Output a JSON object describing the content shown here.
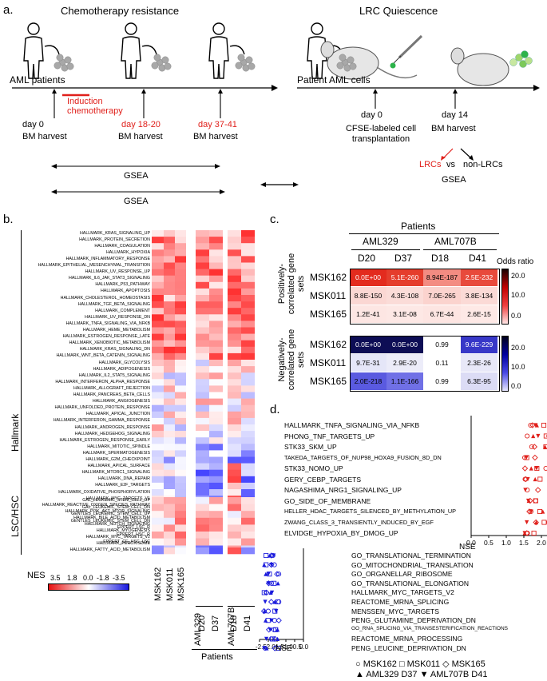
{
  "panel_a": {
    "letter": "a.",
    "chemo_title": "Chemotherapy resistance",
    "lrc_title": "LRC Quiescence",
    "aml_patients": "AML patients",
    "patient_cells": "Patient AML cells",
    "induction": "Induction chemotherapy",
    "day0": "day 0",
    "bm_harvest": "BM harvest",
    "day18": "day 18-20",
    "day37": "day 37-41",
    "lrc_day0": "day 0",
    "cfse": "CFSE-labeled cell transplantation",
    "day14": "day 14",
    "lrc_bm": "BM harvest",
    "lrcs": "LRCs",
    "vs": "vs",
    "non_lrcs": "non-LRCs",
    "gsea_right": "GSEA",
    "gsea1": "GSEA",
    "gsea2": "GSEA"
  },
  "panel_b": {
    "letter": "b.",
    "hallmark_group": "Hallmark",
    "lsc_group": "LSC/HSC",
    "nes_label": "NES",
    "nes_ticks": [
      "3.5",
      "1.8",
      "0.0",
      "-1.8",
      "-3.5"
    ],
    "columns": [
      "MSK162",
      "MSK011",
      "MSK165",
      "D20",
      "D37",
      "D18",
      "D41"
    ],
    "patient_groups": [
      "AML329",
      "AML707B"
    ],
    "patients_label": "Patients",
    "hallmark_rows": [
      "HALLMARK_KRAS_SIGNALING_UP",
      "HALLMARK_PROTEIN_SECRETION",
      "HALLMARK_COAGULATION",
      "HALLMARK_HYPOXIA",
      "HALLMARK_INFLAMMATORY_RESPONSE",
      "HALLMARK_EPITHELIAL_MESENCHYMAL_TRANSITION",
      "HALLMARK_UV_RESPONSE_UP",
      "HALLMARK_IL6_JAK_STAT3_SIGNALING",
      "HALLMARK_P53_PATHWAY",
      "HALLMARK_APOPTOSIS",
      "HALLMARK_CHOLESTEROL_HOMEOSTASIS",
      "HALLMARK_TGF_BETA_SIGNALING",
      "HALLMARK_COMPLEMENT",
      "HALLMARK_UV_RESPONSE_DN",
      "HALLMARK_TNFA_SIGNALING_VIA_NFKB",
      "HALLMARK_HEME_METABOLISM",
      "HALLMARK_ESTROGEN_RESPONSE_LATE",
      "HALLMARK_XENOBIOTIC_METABOLISM",
      "HALLMARK_KRAS_SIGNALING_DN",
      "HALLMARK_WNT_BETA_CATENIN_SIGNALING",
      "HALLMARK_GLYCOLYSIS",
      "HALLMARK_ADIPOGENESIS",
      "HALLMARK_IL2_STAT5_SIGNALING",
      "HALLMARK_INTERFERON_ALPHA_RESPONSE",
      "HALLMARK_ALLOGRAFT_REJECTION",
      "HALLMARK_PANCREAS_BETA_CELLS",
      "HALLMARK_ANGIOGENESIS",
      "HALLMARK_UNFOLDED_PROTEIN_RESPONSE",
      "HALLMARK_APICAL_JUNCTION",
      "HALLMARK_INTERFERON_GAMMA_RESPONSE",
      "HALLMARK_ANDROGEN_RESPONSE",
      "HALLMARK_HEDGEHOG_SIGNALING",
      "HALLMARK_ESTROGEN_RESPONSE_EARLY",
      "HALLMARK_MITOTIC_SPINDLE",
      "HALLMARK_SPERMATOGENESIS",
      "HALLMARK_G2M_CHECKPOINT",
      "HALLMARK_APICAL_SURFACE",
      "HALLMARK_MTORC1_SIGNALING",
      "HALLMARK_DNA_REPAIR",
      "HALLMARK_E2F_TARGETS",
      "HALLMARK_OXIDATIVE_PHOSPHORYLATION",
      "HALLMARK_MYC_TARGETS_V1",
      "HALLMARK_REACTIVE_OXIGEN_SPECIES_PATHWAY",
      "HALLMARK_PI3K_AKT_MTOR_SIGNALING",
      "HALLMARK_BILE_ACID_METABOLISM",
      "HALLMARK_NOTCH_SIGNALING",
      "HALLMARK_MYOGENESIS",
      "HALLMARK_MYC_TARGETS_V2",
      "HALLMARK_PEROXISOME",
      "HALLMARK_FATTY_ACID_METABOLISM"
    ],
    "lsc_rows": [
      "GAL_LEUKEMIC_STEM_CELL_UP",
      "GAL_LEUKEMIC_STEM_CELL_DN",
      "GENTLES_LEUKEMIC_STEM_CELL_UP",
      "GENTLES_LEUKEMIC_STEM_CELL_DN",
      "EPPERT_LSC_R",
      "EPPERT_HSC_R",
      "EPPERT_CE_HSC_LSC"
    ]
  },
  "panel_c": {
    "letter": "c.",
    "patients_label": "Patients",
    "groups": [
      "AML329",
      "AML707B"
    ],
    "cols": [
      "D20",
      "D37",
      "D18",
      "D41"
    ],
    "rows": [
      "MSK162",
      "MSK011",
      "MSK165"
    ],
    "pos_title": "Positively-correlated gene sets",
    "neg_title": "Negatively-correlated gene sets",
    "odds_label": "Odds ratio",
    "scale_ticks": [
      "20.0",
      "10.0",
      "0.0"
    ],
    "pos_values": [
      [
        "0.0E+00",
        "5.1E-260",
        "8.94E-187",
        "2.5E-232"
      ],
      [
        "8.8E-150",
        "4.3E-108",
        "7.0E-265",
        "3.8E-134"
      ],
      [
        "1.2E-41",
        "3.1E-08",
        "6.7E-44",
        "2.6E-15"
      ]
    ],
    "neg_values": [
      [
        "0.0E+00",
        "0.0E+00",
        "0.99",
        "9.6E-229"
      ],
      [
        "9.7E-31",
        "2.9E-20",
        "0.11",
        "2.3E-26"
      ],
      [
        "2.0E-218",
        "1.1E-166",
        "0.99",
        "6.3E-95"
      ]
    ],
    "pos_colors": [
      [
        "#e32b1e",
        "#e53d2c",
        "#f38c82",
        "#e84a3c"
      ],
      [
        "#fbd7d3",
        "#fbdcd8",
        "#fbd3ce",
        "#fbdad6"
      ],
      [
        "#fde6e3",
        "#fde8e5",
        "#fde5e2",
        "#fee9e6"
      ]
    ],
    "neg_colors": [
      [
        "#0d0d55",
        "#0d0d55",
        "#ffffff",
        "#3838c8"
      ],
      [
        "#e5e6f8",
        "#ececf9",
        "#ffffff",
        "#e8e8f8"
      ],
      [
        "#5a5ae0",
        "#7070e6",
        "#ffffff",
        "#dcdcf5"
      ]
    ]
  },
  "panel_d": {
    "letter": "d.",
    "top_labels": [
      "HALLMARK_TNFA_SIGNALING_VIA_NFKB",
      "PHONG_TNF_TARGETS_UP",
      "STK33_SKM_UP",
      "TAKEDA_TARGETS_OF_NUP98_HOXA9_FUSION_8D_DN",
      "STK33_NOMO_UP",
      "GERY_CEBP_TARGETS",
      "NAGASHIMA_NRG1_SIGNALING_UP",
      "GO_SIDE_OF_MEMBRANE",
      "HELLER_HDAC_TARGETS_SILENCED_BY_METHYLATION_UP",
      "ZWANG_CLASS_3_TRANSIENTLY_INDUCED_BY_EGF",
      "ELVIDGE_HYPOXIA_BY_DMOG_UP"
    ],
    "bottom_labels": [
      "GO_TRANSLATIONAL_TERMINATION",
      "GO_MITOCHONDRIAL_TRANSLATION",
      "GO_ORGANELLAR_RIBOSOME",
      "GO_TRANSLATIONAL_ELONGATION",
      "HALLMARK_MYC_TARGETS_V2",
      "REACTOME_MRNA_SPLICING",
      "MENSSEN_MYC_TARGETS",
      "PENG_GLUTAMINE_DEPRIVATION_DN",
      "GO_RNA_SPLICING_VIA_TRANSESTERIFICATION_REACTIONS",
      "REACTOME_MRNA_PROCESSING",
      "PENG_LEUCINE_DEPRIVATION_DN"
    ],
    "top_axis_label": "NSE",
    "top_ticks": [
      "0.0",
      "0.5",
      "1.0",
      "1.5",
      "2.0",
      "2.5"
    ],
    "bottom_axis_label": "NSE",
    "bottom_ticks": [
      "-2.5",
      "-2.0",
      "-1.5",
      "-1.0",
      "-0.5",
      "0.0"
    ],
    "legend_line1": "○ MSK162 □ MSK011 ◇ MSK165",
    "legend_line2": "▲ AML329 D37 ▼ AML707B D41",
    "top_color": "#e0201b",
    "bottom_color": "#1a1adc"
  }
}
